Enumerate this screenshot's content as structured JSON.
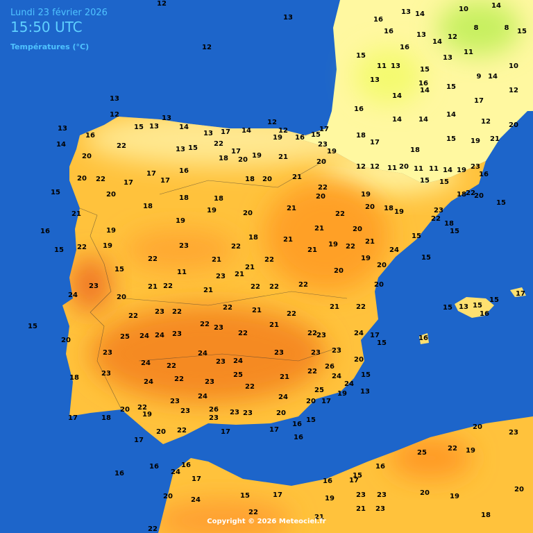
{
  "header": {
    "date": "Lundi 23 février 2026",
    "time": "15:50 UTC",
    "subtitle": "Températures (°C)"
  },
  "copyright": "Copyright © 2026 Meteociel.fr",
  "stations": [
    12,
    13,
    12,
    13,
    12,
    13,
    16,
    15,
    13,
    13,
    14,
    13,
    17,
    14,
    12,
    12,
    16,
    15,
    17,
    14,
    20,
    22,
    13,
    15,
    22,
    17,
    19,
    19,
    21,
    23,
    19,
    15,
    20,
    22,
    20,
    17,
    17,
    17,
    16,
    18,
    20,
    18,
    20,
    21,
    20,
    18,
    18,
    19,
    18,
    20,
    21,
    22,
    20,
    16,
    21,
    19,
    19,
    18,
    21,
    21,
    22,
    15,
    22,
    19,
    22,
    23,
    21,
    22,
    21,
    22,
    21,
    19,
    22,
    21,
    24,
    15,
    11,
    21,
    23,
    23,
    21,
    22,
    21,
    22,
    22,
    22,
    20,
    20,
    15,
    15,
    24,
    20,
    22,
    21,
    22,
    21,
    22,
    23,
    22,
    15,
    22,
    22,
    23,
    22,
    21,
    22,
    23,
    24,
    17,
    15,
    16,
    25,
    24,
    24,
    23,
    20,
    23,
    24,
    22,
    24,
    23,
    24,
    23,
    23,
    23,
    26,
    20,
    23,
    24,
    22,
    23,
    25,
    22,
    21,
    22,
    24,
    24,
    15,
    18,
    13,
    25,
    19,
    23,
    24,
    24,
    20,
    17,
    22,
    23,
    26,
    23,
    23,
    20,
    17,
    18,
    20,
    19,
    23,
    17,
    20,
    22,
    17,
    16,
    16,
    15,
    17,
    25,
    22,
    19,
    23,
    20,
    20,
    19,
    20,
    23,
    23,
    21,
    23,
    19,
    16,
    15,
    16,
    17,
    15,
    17,
    20,
    24,
    16,
    16,
    16,
    17,
    24,
    18,
    21,
    22,
    22,
    13,
    15,
    15,
    16,
    17,
    15,
    13,
    14,
    10,
    14,
    16,
    16,
    13,
    16,
    14,
    12,
    8,
    8,
    15,
    15,
    11,
    13,
    15,
    13,
    11,
    9,
    14,
    10,
    13,
    16,
    15,
    17,
    12,
    14,
    14,
    16,
    14,
    14,
    14,
    12,
    20,
    18,
    17,
    18,
    15,
    19,
    21,
    12,
    12,
    11,
    20,
    11,
    11,
    14,
    19,
    23,
    16,
    15,
    15,
    22,
    18,
    20,
    15,
    23,
    22,
    18,
    15,
    19,
    18,
    19,
    20,
    20,
    19,
    20
  ]
}
